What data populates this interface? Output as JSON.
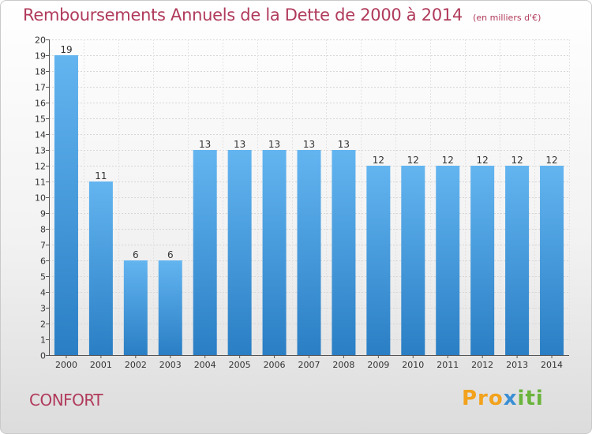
{
  "title": "Remboursements Annuels de la Dette de 2000 à 2014",
  "subtitle": "(en milliers d'€)",
  "commune": "CONFORT",
  "logo": {
    "part1": "Pro",
    "part2": "x",
    "part3": "iti"
  },
  "colors": {
    "title": "#b03a5b",
    "bar_top": "#63b5f0",
    "bar_bottom": "#2a7ec4"
  },
  "chart_data": {
    "type": "bar",
    "title": "Remboursements Annuels de la Dette de 2000 à 2014",
    "xlabel": "",
    "ylabel": "",
    "ylim": [
      0,
      20
    ],
    "yticks": [
      0,
      1,
      2,
      3,
      4,
      5,
      6,
      7,
      8,
      9,
      10,
      11,
      12,
      13,
      14,
      15,
      16,
      17,
      18,
      19,
      20
    ],
    "grid": true,
    "categories": [
      "2000",
      "2001",
      "2002",
      "2003",
      "2004",
      "2005",
      "2006",
      "2007",
      "2008",
      "2009",
      "2010",
      "2011",
      "2012",
      "2013",
      "2014"
    ],
    "values": [
      19,
      11,
      6,
      6,
      13,
      13,
      13,
      13,
      13,
      12,
      12,
      12,
      12,
      12,
      12
    ]
  }
}
